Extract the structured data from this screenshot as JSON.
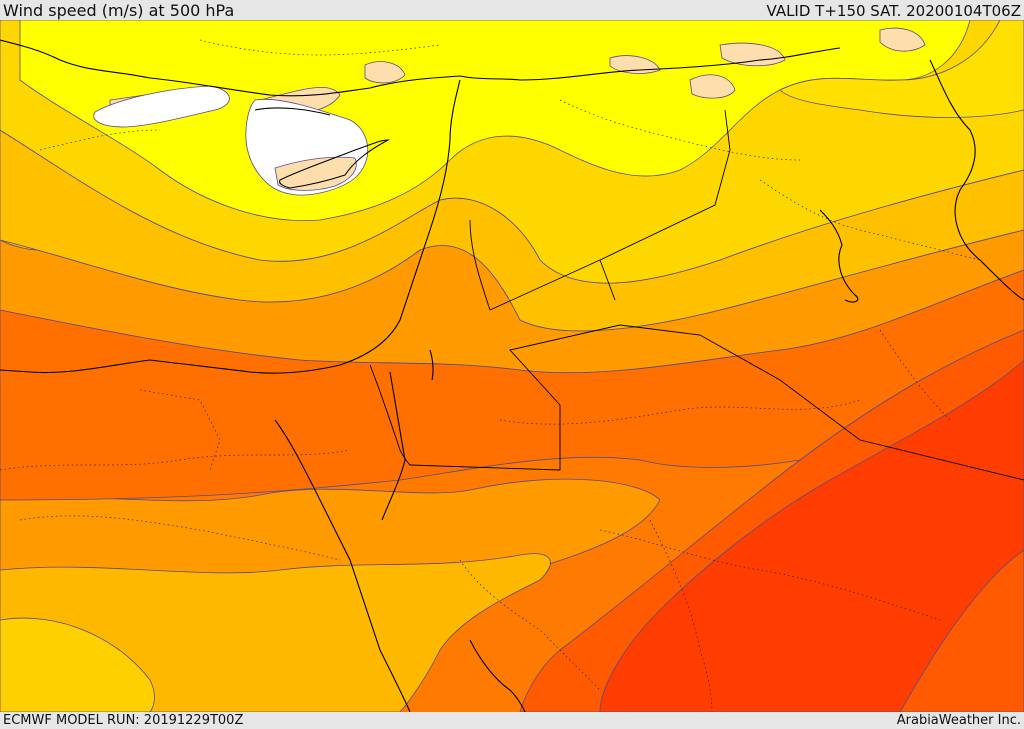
{
  "header": {
    "title": "Wind speed (m/s) at 500 hPa",
    "valid_time": "VALID T+150 SAT. 20200104T06Z"
  },
  "footer": {
    "model_run": "ECMWF MODEL RUN: 20191229T00Z",
    "credit": "ArabiaWeather Inc."
  },
  "map": {
    "parameter": "wind speed",
    "level": "500 hPa",
    "units": "m/s",
    "color_bands": [
      "#ffffff",
      "#ffdead",
      "#ffff00",
      "#ffd700",
      "#ffb800",
      "#ff9a00",
      "#ff7a00",
      "#ff5a00",
      "#ff3d00"
    ],
    "boundary_color": "#000000",
    "contour_color": "#5a4a8a"
  }
}
